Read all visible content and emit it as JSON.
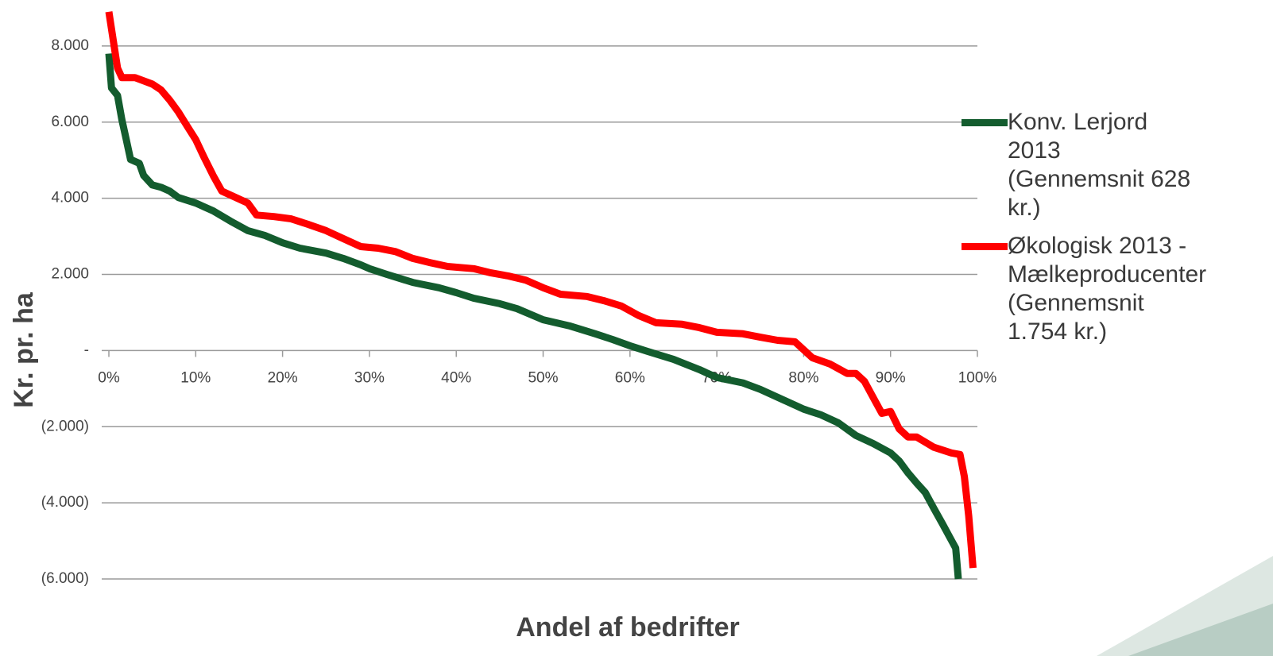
{
  "chart_data": {
    "type": "line",
    "xlabel": "Andel af bedrifter",
    "ylabel": "Kr. pr. ha",
    "xlim": [
      0,
      100
    ],
    "ylim": [
      -6000,
      9000
    ],
    "xticks": [
      {
        "value": 0,
        "label": "0%"
      },
      {
        "value": 10,
        "label": "10%"
      },
      {
        "value": 20,
        "label": "20%"
      },
      {
        "value": 30,
        "label": "30%"
      },
      {
        "value": 40,
        "label": "40%"
      },
      {
        "value": 50,
        "label": "50%"
      },
      {
        "value": 60,
        "label": "60%"
      },
      {
        "value": 70,
        "label": "70%"
      },
      {
        "value": 80,
        "label": "80%"
      },
      {
        "value": 90,
        "label": "90%"
      },
      {
        "value": 100,
        "label": "100%"
      }
    ],
    "yticks": [
      {
        "value": -6000,
        "label": "(6.000)"
      },
      {
        "value": -4000,
        "label": "(4.000)"
      },
      {
        "value": -2000,
        "label": "(2.000)"
      },
      {
        "value": 0,
        "label": "-"
      },
      {
        "value": 2000,
        "label": "2.000"
      },
      {
        "value": 4000,
        "label": "4.000"
      },
      {
        "value": 6000,
        "label": "6.000"
      },
      {
        "value": 8000,
        "label": "8.000"
      }
    ],
    "grid": true,
    "legend": "right",
    "series": [
      {
        "name": "Konv. Lerjord 2013 (Gennemsnit 628 kr.)",
        "color": "#135c2e",
        "x": [
          0,
          0.3,
          1,
          1.5,
          2,
          2.5,
          3.5,
          4,
          5,
          6,
          7,
          8,
          10,
          12,
          14,
          16,
          18,
          20,
          22,
          25,
          27,
          29,
          30,
          32,
          35,
          38,
          40,
          42,
          45,
          47,
          50,
          53,
          56,
          58,
          60,
          62,
          65,
          68,
          70,
          73,
          75,
          78,
          80,
          82,
          84,
          86,
          88,
          90,
          91,
          92,
          93,
          94,
          95,
          96,
          97,
          97.5,
          97.8
        ],
        "values": [
          7800,
          6900,
          6700,
          6060,
          5540,
          5020,
          4920,
          4600,
          4350,
          4290,
          4190,
          4020,
          3875,
          3670,
          3400,
          3150,
          3020,
          2830,
          2690,
          2560,
          2420,
          2250,
          2150,
          2000,
          1790,
          1650,
          1520,
          1375,
          1230,
          1100,
          810,
          650,
          440,
          290,
          125,
          -20,
          -230,
          -500,
          -710,
          -850,
          -1020,
          -1330,
          -1540,
          -1690,
          -1900,
          -2230,
          -2440,
          -2690,
          -2900,
          -3210,
          -3480,
          -3730,
          -4150,
          -4560,
          -4980,
          -5190,
          -6000
        ]
      },
      {
        "name": "Økologisk 2013 - Mælkeproducenter (Gennemsnit 1.754 kr.)",
        "color": "#ff0000",
        "x": [
          0,
          0.5,
          1,
          1.5,
          3,
          5,
          6,
          7,
          8,
          9,
          10,
          11,
          12,
          13,
          15,
          16,
          17,
          19,
          21,
          23,
          25,
          27,
          29,
          31,
          33,
          35,
          37,
          39,
          42,
          44,
          46,
          48,
          50,
          52,
          55,
          57,
          59,
          61,
          63,
          66,
          68,
          70,
          73,
          75,
          77,
          79,
          80,
          81,
          83,
          85,
          86,
          87,
          88,
          89,
          90,
          91,
          92,
          93,
          95,
          97,
          98,
          98.5,
          99,
          99.5
        ],
        "values": [
          8900,
          8150,
          7420,
          7170,
          7170,
          7000,
          6850,
          6580,
          6270,
          5900,
          5540,
          5060,
          4600,
          4190,
          3980,
          3875,
          3560,
          3520,
          3460,
          3310,
          3150,
          2940,
          2730,
          2690,
          2600,
          2420,
          2310,
          2210,
          2150,
          2040,
          1960,
          1850,
          1650,
          1480,
          1420,
          1310,
          1170,
          920,
          730,
          690,
          600,
          480,
          440,
          350,
          270,
          230,
          20,
          -190,
          -350,
          -600,
          -600,
          -810,
          -1230,
          -1650,
          -1600,
          -2060,
          -2270,
          -2270,
          -2540,
          -2690,
          -2730,
          -3310,
          -4350,
          -5710
        ]
      }
    ]
  }
}
